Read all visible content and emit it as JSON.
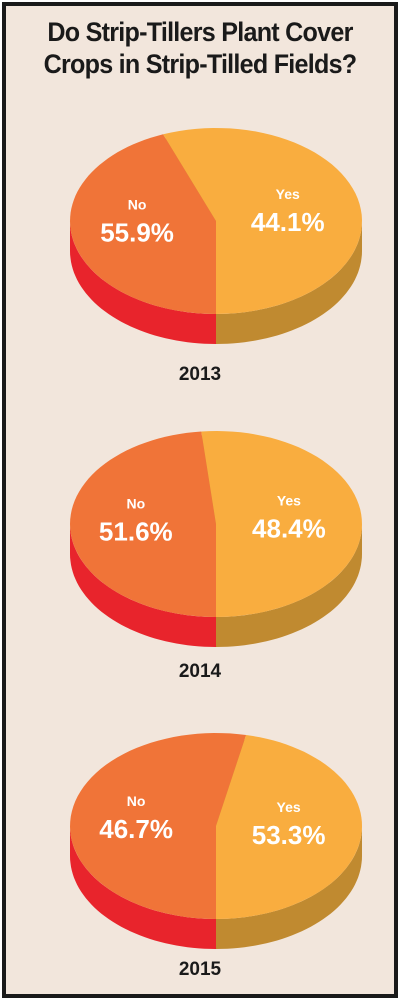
{
  "title_lines": [
    "Do Strip-Tillers Plant Cover",
    "Crops in Strip-Tilled Fields?"
  ],
  "colors": {
    "no_top": "#f07438",
    "no_side": "#e8242c",
    "yes_top": "#f9ad3f",
    "yes_side": "#c08a30",
    "label_text": "#ffffff"
  },
  "chart_data": [
    {
      "type": "pie",
      "title": "2013",
      "slices": [
        {
          "label": "Yes",
          "value": 44.1,
          "value_text": "44.1%"
        },
        {
          "label": "No",
          "value": 55.9,
          "value_text": "55.9%"
        }
      ]
    },
    {
      "type": "pie",
      "title": "2014",
      "slices": [
        {
          "label": "Yes",
          "value": 48.4,
          "value_text": "48.4%"
        },
        {
          "label": "No",
          "value": 51.6,
          "value_text": "51.6%"
        }
      ]
    },
    {
      "type": "pie",
      "title": "2015",
      "slices": [
        {
          "label": "Yes",
          "value": 53.3,
          "value_text": "53.3%"
        },
        {
          "label": "No",
          "value": 46.7,
          "value_text": "46.7%"
        }
      ]
    }
  ]
}
